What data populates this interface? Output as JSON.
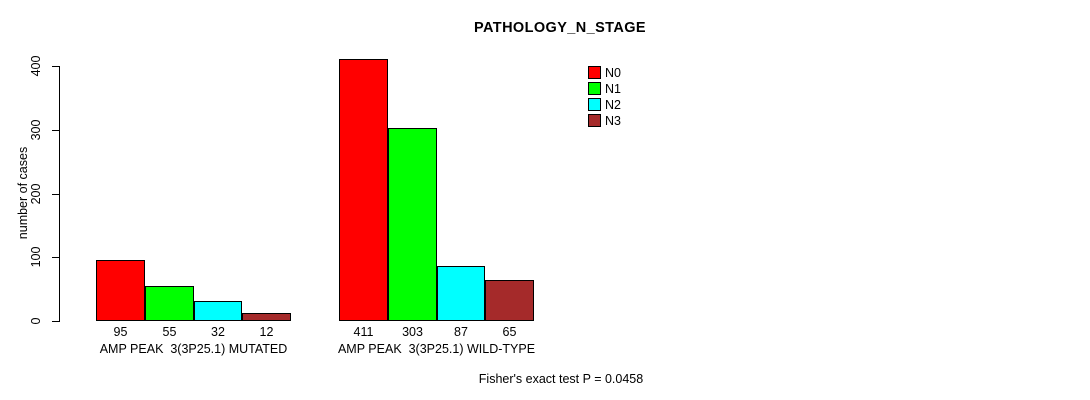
{
  "chart_data": {
    "type": "bar",
    "title": "PATHOLOGY_N_STAGE",
    "ylabel": "number of cases",
    "xlabel": "",
    "ylim": [
      0,
      400
    ],
    "yticks": [
      0,
      100,
      200,
      300,
      400
    ],
    "grid": false,
    "legend_position": "top-right",
    "categories": [
      "AMP PEAK  3(3P25.1) MUTATED",
      "AMP PEAK  3(3P25.1) WILD-TYPE"
    ],
    "series": [
      {
        "name": "N0",
        "color": "#FF0000",
        "values": [
          95,
          411
        ]
      },
      {
        "name": "N1",
        "color": "#00FF00",
        "values": [
          55,
          303
        ]
      },
      {
        "name": "N2",
        "color": "#00FFFF",
        "values": [
          32,
          87
        ]
      },
      {
        "name": "N3",
        "color": "#A52A2A",
        "values": [
          12,
          65
        ]
      }
    ],
    "bar_value_labels": true,
    "annotation": "Fisher's exact test P = 0.0458",
    "bar_border_color": "#000000",
    "axis_color": "#000000",
    "background": "#FFFFFF"
  }
}
